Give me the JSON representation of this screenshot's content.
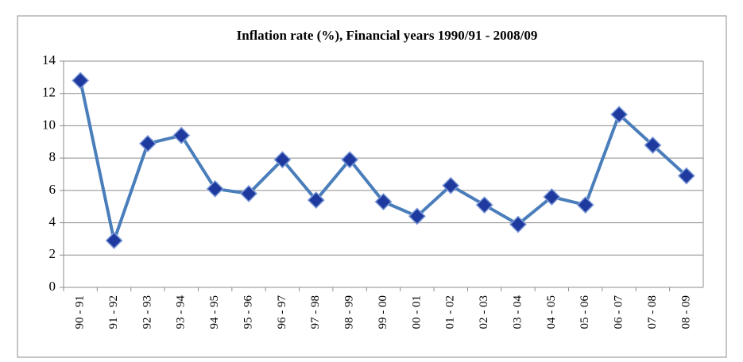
{
  "chart_data": {
    "type": "line",
    "title": "Inflation rate (%), Financial years 1990/91 - 2008/09",
    "categories": [
      "90 - 91",
      "91 - 92",
      "92 - 93",
      "93 - 94",
      "94 - 95",
      "95 - 96",
      "96 - 97",
      "97 - 98",
      "98 - 99",
      "99 - 00",
      "00 - 01",
      "01 - 02",
      "02 - 03",
      "03 - 04",
      "04 - 05",
      "05 - 06",
      "06 - 07",
      "07 - 08",
      "08 - 09"
    ],
    "values": [
      12.8,
      2.9,
      8.9,
      9.4,
      6.1,
      5.8,
      7.9,
      5.4,
      7.9,
      5.3,
      4.4,
      6.3,
      5.1,
      3.9,
      5.6,
      5.1,
      10.7,
      8.8,
      6.9
    ],
    "color": "#4a7ebb",
    "marker_color": "#1f3a9e",
    "ylim": [
      0,
      14
    ],
    "yticks": [
      0,
      2,
      4,
      6,
      8,
      10,
      12,
      14
    ],
    "grid": true
  }
}
